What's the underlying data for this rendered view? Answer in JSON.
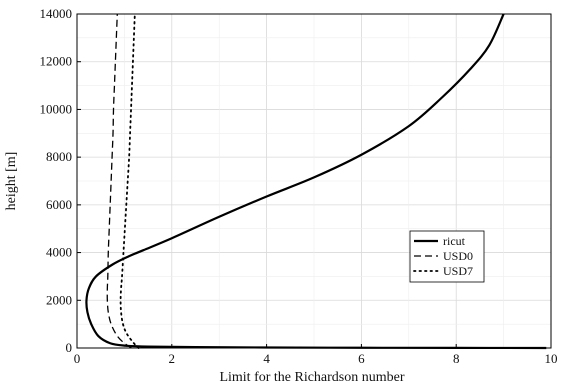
{
  "chart_data": {
    "type": "line",
    "title": "",
    "xlabel": "Limit for the Richardson number",
    "ylabel": "height [m]",
    "xlim": [
      0,
      10
    ],
    "ylim": [
      0,
      14000
    ],
    "x_ticks": [
      0,
      2,
      4,
      6,
      8,
      10
    ],
    "y_ticks": [
      0,
      2000,
      4000,
      6000,
      8000,
      10000,
      12000,
      14000
    ],
    "grid": true,
    "legend_position": "right",
    "series": [
      {
        "name": "ricut",
        "style": "solid",
        "color": "#000000",
        "points": [
          [
            9.9,
            0
          ],
          [
            8.0,
            5
          ],
          [
            6.0,
            10
          ],
          [
            4.0,
            20
          ],
          [
            2.5,
            40
          ],
          [
            1.5,
            60
          ],
          [
            1.0,
            100
          ],
          [
            0.7,
            200
          ],
          [
            0.45,
            500
          ],
          [
            0.3,
            1000
          ],
          [
            0.22,
            1500
          ],
          [
            0.2,
            2000
          ],
          [
            0.25,
            2500
          ],
          [
            0.4,
            3000
          ],
          [
            0.75,
            3500
          ],
          [
            1.1,
            3850
          ],
          [
            1.4,
            4100
          ],
          [
            2.0,
            4600
          ],
          [
            3.0,
            5500
          ],
          [
            4.0,
            6350
          ],
          [
            5.0,
            7150
          ],
          [
            6.0,
            8100
          ],
          [
            7.0,
            9300
          ],
          [
            7.7,
            10500
          ],
          [
            8.3,
            11700
          ],
          [
            8.7,
            12700
          ],
          [
            9.0,
            14000
          ]
        ]
      },
      {
        "name": "USD0",
        "style": "dashed",
        "color": "#000000",
        "points": [
          [
            1.15,
            0
          ],
          [
            1.0,
            200
          ],
          [
            0.85,
            500
          ],
          [
            0.72,
            1000
          ],
          [
            0.66,
            1500
          ],
          [
            0.64,
            2000
          ],
          [
            0.64,
            2500
          ],
          [
            0.65,
            3000
          ],
          [
            0.66,
            4000
          ],
          [
            0.68,
            5000
          ],
          [
            0.7,
            6000
          ],
          [
            0.72,
            7000
          ],
          [
            0.74,
            8000
          ],
          [
            0.76,
            9000
          ],
          [
            0.77,
            10000
          ],
          [
            0.79,
            11000
          ],
          [
            0.81,
            12000
          ],
          [
            0.83,
            13000
          ],
          [
            0.85,
            14000
          ]
        ]
      },
      {
        "name": "USD7",
        "style": "dotted",
        "color": "#000000",
        "points": [
          [
            1.3,
            0
          ],
          [
            1.2,
            200
          ],
          [
            1.05,
            600
          ],
          [
            0.97,
            1000
          ],
          [
            0.93,
            1500
          ],
          [
            0.92,
            2000
          ],
          [
            0.93,
            2500
          ],
          [
            0.95,
            3000
          ],
          [
            0.98,
            4000
          ],
          [
            1.01,
            5000
          ],
          [
            1.04,
            6000
          ],
          [
            1.07,
            7000
          ],
          [
            1.1,
            8000
          ],
          [
            1.12,
            9000
          ],
          [
            1.14,
            10000
          ],
          [
            1.16,
            11000
          ],
          [
            1.18,
            12000
          ],
          [
            1.2,
            13000
          ],
          [
            1.22,
            14000
          ]
        ]
      }
    ]
  }
}
